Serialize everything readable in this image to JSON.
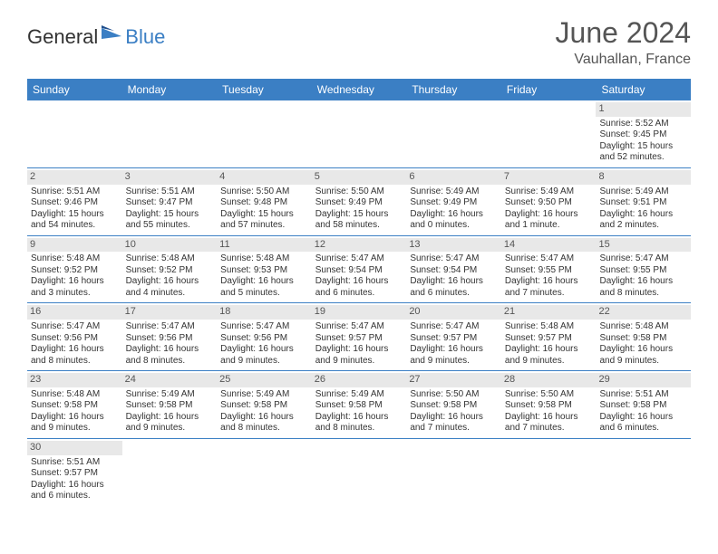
{
  "brand": {
    "part1": "General",
    "part2": "Blue"
  },
  "title": "June 2024",
  "location": "Vauhallan, France",
  "colors": {
    "header_bg": "#3b7fc4",
    "header_text": "#ffffff",
    "date_strip_bg": "#e8e8e8",
    "text": "#333333",
    "title_text": "#555555",
    "border": "#3b7fc4"
  },
  "day_names": [
    "Sunday",
    "Monday",
    "Tuesday",
    "Wednesday",
    "Thursday",
    "Friday",
    "Saturday"
  ],
  "weeks": [
    [
      {
        "n": "",
        "empty": true
      },
      {
        "n": "",
        "empty": true
      },
      {
        "n": "",
        "empty": true
      },
      {
        "n": "",
        "empty": true
      },
      {
        "n": "",
        "empty": true
      },
      {
        "n": "",
        "empty": true
      },
      {
        "n": "1",
        "sunrise": "5:52 AM",
        "sunset": "9:45 PM",
        "daylight": "15 hours and 52 minutes."
      }
    ],
    [
      {
        "n": "2",
        "sunrise": "5:51 AM",
        "sunset": "9:46 PM",
        "daylight": "15 hours and 54 minutes."
      },
      {
        "n": "3",
        "sunrise": "5:51 AM",
        "sunset": "9:47 PM",
        "daylight": "15 hours and 55 minutes."
      },
      {
        "n": "4",
        "sunrise": "5:50 AM",
        "sunset": "9:48 PM",
        "daylight": "15 hours and 57 minutes."
      },
      {
        "n": "5",
        "sunrise": "5:50 AM",
        "sunset": "9:49 PM",
        "daylight": "15 hours and 58 minutes."
      },
      {
        "n": "6",
        "sunrise": "5:49 AM",
        "sunset": "9:49 PM",
        "daylight": "16 hours and 0 minutes."
      },
      {
        "n": "7",
        "sunrise": "5:49 AM",
        "sunset": "9:50 PM",
        "daylight": "16 hours and 1 minute."
      },
      {
        "n": "8",
        "sunrise": "5:49 AM",
        "sunset": "9:51 PM",
        "daylight": "16 hours and 2 minutes."
      }
    ],
    [
      {
        "n": "9",
        "sunrise": "5:48 AM",
        "sunset": "9:52 PM",
        "daylight": "16 hours and 3 minutes."
      },
      {
        "n": "10",
        "sunrise": "5:48 AM",
        "sunset": "9:52 PM",
        "daylight": "16 hours and 4 minutes."
      },
      {
        "n": "11",
        "sunrise": "5:48 AM",
        "sunset": "9:53 PM",
        "daylight": "16 hours and 5 minutes."
      },
      {
        "n": "12",
        "sunrise": "5:47 AM",
        "sunset": "9:54 PM",
        "daylight": "16 hours and 6 minutes."
      },
      {
        "n": "13",
        "sunrise": "5:47 AM",
        "sunset": "9:54 PM",
        "daylight": "16 hours and 6 minutes."
      },
      {
        "n": "14",
        "sunrise": "5:47 AM",
        "sunset": "9:55 PM",
        "daylight": "16 hours and 7 minutes."
      },
      {
        "n": "15",
        "sunrise": "5:47 AM",
        "sunset": "9:55 PM",
        "daylight": "16 hours and 8 minutes."
      }
    ],
    [
      {
        "n": "16",
        "sunrise": "5:47 AM",
        "sunset": "9:56 PM",
        "daylight": "16 hours and 8 minutes."
      },
      {
        "n": "17",
        "sunrise": "5:47 AM",
        "sunset": "9:56 PM",
        "daylight": "16 hours and 8 minutes."
      },
      {
        "n": "18",
        "sunrise": "5:47 AM",
        "sunset": "9:56 PM",
        "daylight": "16 hours and 9 minutes."
      },
      {
        "n": "19",
        "sunrise": "5:47 AM",
        "sunset": "9:57 PM",
        "daylight": "16 hours and 9 minutes."
      },
      {
        "n": "20",
        "sunrise": "5:47 AM",
        "sunset": "9:57 PM",
        "daylight": "16 hours and 9 minutes."
      },
      {
        "n": "21",
        "sunrise": "5:48 AM",
        "sunset": "9:57 PM",
        "daylight": "16 hours and 9 minutes."
      },
      {
        "n": "22",
        "sunrise": "5:48 AM",
        "sunset": "9:58 PM",
        "daylight": "16 hours and 9 minutes."
      }
    ],
    [
      {
        "n": "23",
        "sunrise": "5:48 AM",
        "sunset": "9:58 PM",
        "daylight": "16 hours and 9 minutes."
      },
      {
        "n": "24",
        "sunrise": "5:49 AM",
        "sunset": "9:58 PM",
        "daylight": "16 hours and 9 minutes."
      },
      {
        "n": "25",
        "sunrise": "5:49 AM",
        "sunset": "9:58 PM",
        "daylight": "16 hours and 8 minutes."
      },
      {
        "n": "26",
        "sunrise": "5:49 AM",
        "sunset": "9:58 PM",
        "daylight": "16 hours and 8 minutes."
      },
      {
        "n": "27",
        "sunrise": "5:50 AM",
        "sunset": "9:58 PM",
        "daylight": "16 hours and 7 minutes."
      },
      {
        "n": "28",
        "sunrise": "5:50 AM",
        "sunset": "9:58 PM",
        "daylight": "16 hours and 7 minutes."
      },
      {
        "n": "29",
        "sunrise": "5:51 AM",
        "sunset": "9:58 PM",
        "daylight": "16 hours and 6 minutes."
      }
    ],
    [
      {
        "n": "30",
        "sunrise": "5:51 AM",
        "sunset": "9:57 PM",
        "daylight": "16 hours and 6 minutes."
      },
      {
        "n": "",
        "empty": true
      },
      {
        "n": "",
        "empty": true
      },
      {
        "n": "",
        "empty": true
      },
      {
        "n": "",
        "empty": true
      },
      {
        "n": "",
        "empty": true
      },
      {
        "n": "",
        "empty": true
      }
    ]
  ],
  "labels": {
    "sunrise": "Sunrise:",
    "sunset": "Sunset:",
    "daylight": "Daylight:"
  }
}
